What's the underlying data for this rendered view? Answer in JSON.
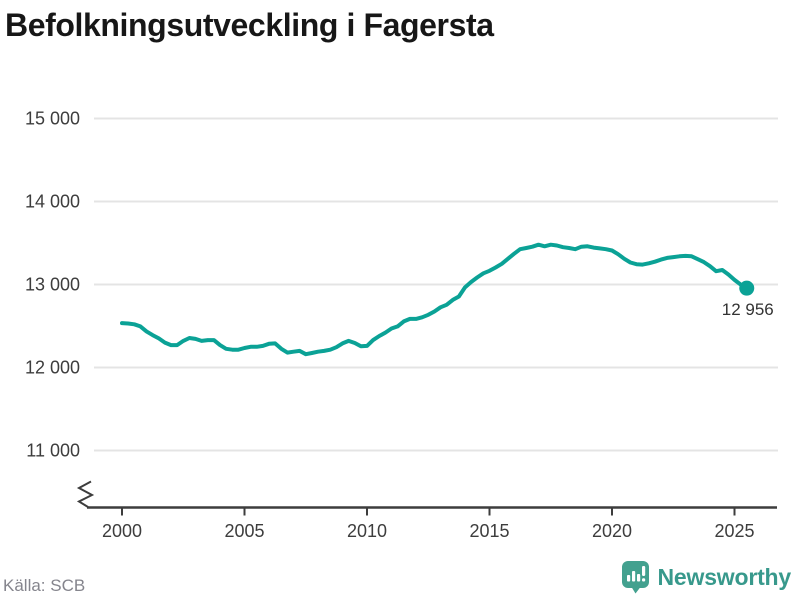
{
  "title": "Befolkningsutveckling i Fagersta",
  "source": "Källa: SCB",
  "annotation": {
    "label": "12 956"
  },
  "logo": {
    "text": "Newsworthy",
    "icon": "newsworthy-bar-chart-bubble-icon",
    "icon_color": "#43a18f",
    "text_color": "#38998c"
  },
  "colors": {
    "line": "#0ba296",
    "grid": "#e4e4e4",
    "axis": "#3d3d3d",
    "tick_text": "#3d3d3d",
    "annotation": "#333333",
    "title": "#171717",
    "source": "#85858d"
  },
  "chart_data": {
    "type": "line",
    "title": "Befolkningsutveckling i Fagersta",
    "series_name": "Befolkning i Fagersta",
    "xlabel": "",
    "ylabel": "",
    "grid": "horizontal",
    "legend": "none",
    "axis_break": true,
    "xlim": [
      1998.6,
      2026.9
    ],
    "ylim_displayed": [
      10600,
      15000
    ],
    "y_ticks": [
      11000,
      12000,
      13000,
      14000,
      15000
    ],
    "y_tick_labels": [
      "11 000",
      "12 000",
      "13 000",
      "14 000",
      "15 000"
    ],
    "x_ticks": [
      2000,
      2005,
      2010,
      2015,
      2020,
      2025
    ],
    "x_tick_labels": [
      "2000",
      "2005",
      "2010",
      "2015",
      "2020",
      "2025"
    ],
    "last_value": 12956,
    "last_point_label": "12 956",
    "x": [
      2000,
      2000.25,
      2000.5,
      2000.75,
      2001,
      2001.25,
      2001.5,
      2001.75,
      2002,
      2002.25,
      2002.5,
      2002.75,
      2003,
      2003.25,
      2003.5,
      2003.75,
      2004,
      2004.25,
      2004.5,
      2004.75,
      2005,
      2005.25,
      2005.5,
      2005.75,
      2006,
      2006.25,
      2006.5,
      2006.75,
      2007,
      2007.25,
      2007.5,
      2007.75,
      2008,
      2008.25,
      2008.5,
      2008.75,
      2009,
      2009.25,
      2009.5,
      2009.75,
      2010,
      2010.25,
      2010.5,
      2010.75,
      2011,
      2011.25,
      2011.5,
      2011.75,
      2012,
      2012.25,
      2012.5,
      2012.75,
      2013,
      2013.25,
      2013.5,
      2013.75,
      2014,
      2014.25,
      2014.5,
      2014.75,
      2015,
      2015.25,
      2015.5,
      2015.75,
      2016,
      2016.25,
      2016.5,
      2016.75,
      2017,
      2017.25,
      2017.5,
      2017.75,
      2018,
      2018.25,
      2018.5,
      2018.75,
      2019,
      2019.25,
      2019.5,
      2019.75,
      2020,
      2020.25,
      2020.5,
      2020.75,
      2021,
      2021.25,
      2021.5,
      2021.75,
      2022,
      2022.25,
      2022.5,
      2022.75,
      2023,
      2023.25,
      2023.5,
      2023.75,
      2024,
      2024.25,
      2024.5,
      2024.75,
      2025,
      2025.25,
      2025.5
    ],
    "values": [
      12535,
      12530,
      12520,
      12495,
      12435,
      12390,
      12350,
      12300,
      12270,
      12270,
      12320,
      12355,
      12345,
      12320,
      12330,
      12330,
      12270,
      12225,
      12215,
      12215,
      12235,
      12250,
      12250,
      12260,
      12285,
      12290,
      12225,
      12180,
      12190,
      12200,
      12160,
      12175,
      12190,
      12200,
      12215,
      12245,
      12290,
      12320,
      12295,
      12255,
      12260,
      12330,
      12380,
      12420,
      12470,
      12495,
      12555,
      12585,
      12585,
      12605,
      12635,
      12675,
      12725,
      12755,
      12815,
      12855,
      12965,
      13030,
      13085,
      13135,
      13165,
      13205,
      13250,
      13310,
      13370,
      13425,
      13440,
      13455,
      13480,
      13460,
      13480,
      13470,
      13450,
      13440,
      13425,
      13455,
      13460,
      13445,
      13435,
      13425,
      13410,
      13365,
      13310,
      13265,
      13245,
      13240,
      13255,
      13275,
      13300,
      13320,
      13330,
      13340,
      13345,
      13340,
      13305,
      13270,
      13220,
      13160,
      13175,
      13120,
      13055,
      13000,
      12956
    ]
  }
}
